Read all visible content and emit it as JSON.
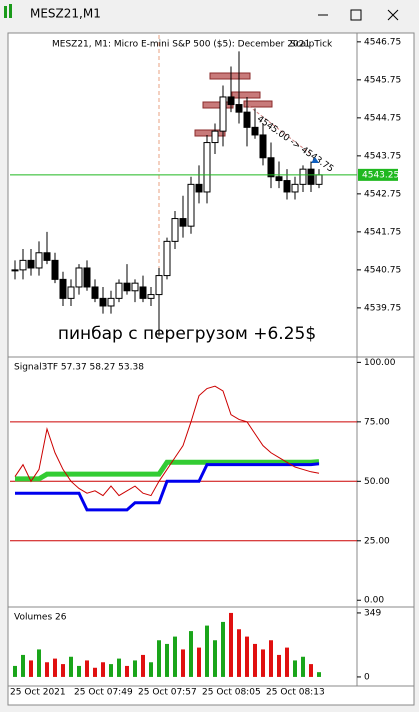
{
  "window": {
    "title": "MESZ21,M1"
  },
  "chart_data": [
    {
      "type": "candlestick",
      "title": "MESZ21, M1:  Micro E-mini S&P 500 ($5): December 2021",
      "indicator": "ScalpTick",
      "annotation": "пинбар с перегрузом +6.25$",
      "trade_label": "4545.00 -> 4543.75",
      "categories": [
        "25 Oct 2021",
        null,
        null,
        null,
        null,
        null,
        null,
        null,
        "25 Oct 07:49",
        null,
        null,
        null,
        null,
        null,
        null,
        null,
        "25 Oct 07:57",
        null,
        null,
        null,
        null,
        null,
        null,
        null,
        "25 Oct 08:05",
        null,
        null,
        null,
        null,
        null,
        null,
        null,
        "25 Oct 08:13",
        null,
        null,
        null,
        null,
        null,
        null
      ],
      "open": [
        4540.75,
        4540.75,
        4541.0,
        4540.8,
        4541.2,
        4541.0,
        4540.5,
        4540.0,
        4540.3,
        4540.8,
        4540.3,
        4540.0,
        4539.8,
        4540.0,
        4540.4,
        4540.2,
        4540.3,
        4540.0,
        4540.1,
        4540.6,
        4541.5,
        4542.1,
        4541.9,
        4543.0,
        4542.8,
        4544.1,
        4544.4,
        4545.3,
        4545.1,
        4544.9,
        4544.5,
        4544.3,
        4543.7,
        4543.2,
        4543.1,
        4542.8,
        4543.0,
        4543.4,
        4543.0
      ],
      "high": [
        4541.0,
        4541.3,
        4541.3,
        4541.5,
        4541.75,
        4541.2,
        4540.7,
        4540.5,
        4540.9,
        4541.0,
        4540.5,
        4540.3,
        4540.2,
        4540.5,
        4540.9,
        4540.5,
        4540.6,
        4540.3,
        4540.8,
        4541.6,
        4542.3,
        4542.7,
        4543.2,
        4543.5,
        4544.3,
        4544.6,
        4545.6,
        4546.1,
        4546.5,
        4545.3,
        4545.0,
        4544.6,
        4544.1,
        4543.6,
        4543.4,
        4543.2,
        4543.5,
        4543.6,
        4543.4
      ],
      "low": [
        4540.5,
        4540.5,
        4540.6,
        4540.6,
        4540.9,
        4540.4,
        4539.8,
        4539.8,
        4540.1,
        4540.2,
        4539.9,
        4539.6,
        4539.6,
        4539.9,
        4540.1,
        4539.9,
        4539.9,
        4539.8,
        4539.0,
        4540.5,
        4541.3,
        4541.6,
        4541.7,
        4542.5,
        4542.5,
        4543.8,
        4544.0,
        4544.9,
        4544.6,
        4544.0,
        4544.2,
        4543.5,
        4542.9,
        4542.9,
        4542.6,
        4542.6,
        4542.8,
        4542.8,
        4542.9
      ],
      "close": [
        4540.75,
        4541.0,
        4540.8,
        4541.2,
        4541.0,
        4540.5,
        4540.0,
        4540.3,
        4540.8,
        4540.3,
        4540.0,
        4539.8,
        4540.0,
        4540.4,
        4540.2,
        4540.4,
        4540.0,
        4540.1,
        4540.6,
        4541.5,
        4542.1,
        4541.9,
        4543.0,
        4542.8,
        4544.1,
        4544.4,
        4545.3,
        4545.1,
        4544.9,
        4544.5,
        4544.3,
        4543.7,
        4543.2,
        4543.1,
        4542.8,
        4543.0,
        4543.4,
        4543.0,
        4543.25
      ],
      "up_color": "#ffffff",
      "down_color": "#000000",
      "price_line": 4543.25,
      "price_color": "#1fb81f",
      "ylim": [
        4538.51,
        4546.93
      ],
      "yticks": [
        4546.75,
        4545.75,
        4544.75,
        4543.75,
        4542.75,
        4541.75,
        4540.75,
        4539.75
      ]
    },
    {
      "type": "line",
      "title": "Signal3TF 57.37 58.27 53.38",
      "series": [
        {
          "color": "#33cc33",
          "width": 5,
          "values": [
            51,
            51,
            51,
            51,
            53,
            53,
            53,
            53,
            53,
            53,
            53,
            53,
            53,
            53,
            53,
            53,
            53,
            53,
            53,
            58,
            58,
            58,
            58,
            58,
            58,
            58,
            58,
            58,
            58,
            58,
            58,
            58,
            58,
            58,
            58,
            58,
            58,
            58,
            58.27
          ]
        },
        {
          "color": "#0000ee",
          "width": 3,
          "values": [
            45,
            45,
            45,
            45,
            45,
            45,
            45,
            45,
            45,
            38,
            38,
            38,
            38,
            38,
            38,
            41,
            41,
            41,
            41,
            50,
            50,
            50,
            50,
            50,
            57,
            57,
            57,
            57,
            57,
            57,
            57,
            57,
            57,
            57,
            57,
            57,
            57,
            57,
            57.37
          ]
        },
        {
          "color": "#cc0000",
          "width": 1,
          "values": [
            52,
            57,
            50,
            55,
            72,
            62,
            55,
            50,
            47,
            45,
            46,
            44,
            48,
            44,
            46,
            48,
            45,
            44,
            50,
            55,
            60,
            65,
            75,
            86,
            89,
            90,
            88,
            78,
            76,
            75,
            70,
            65,
            62,
            60,
            58,
            56,
            55,
            54,
            53.38
          ]
        }
      ],
      "levels": [
        75,
        50,
        25
      ],
      "level_color": "#cc0000",
      "ylim": [
        -2,
        101
      ],
      "yticks": [
        {
          "value": 100,
          "label": "100.00"
        },
        {
          "value": 75,
          "label": "75.00"
        },
        {
          "value": 50,
          "label": "50.00"
        },
        {
          "value": 25,
          "label": "25.00"
        },
        {
          "value": 0,
          "label": "0.00"
        }
      ]
    },
    {
      "type": "bar",
      "title": "Volumes 26",
      "values": [
        60,
        120,
        90,
        150,
        80,
        100,
        70,
        110,
        60,
        90,
        50,
        80,
        70,
        100,
        60,
        90,
        120,
        80,
        200,
        180,
        220,
        150,
        250,
        160,
        280,
        200,
        300,
        349,
        260,
        220,
        180,
        150,
        200,
        120,
        160,
        90,
        110,
        70,
        26
      ],
      "up_color": "#1aa51a",
      "down_color": "#e01010",
      "ylim": [
        -44,
        365
      ],
      "yticks": [
        349,
        0
      ]
    }
  ]
}
